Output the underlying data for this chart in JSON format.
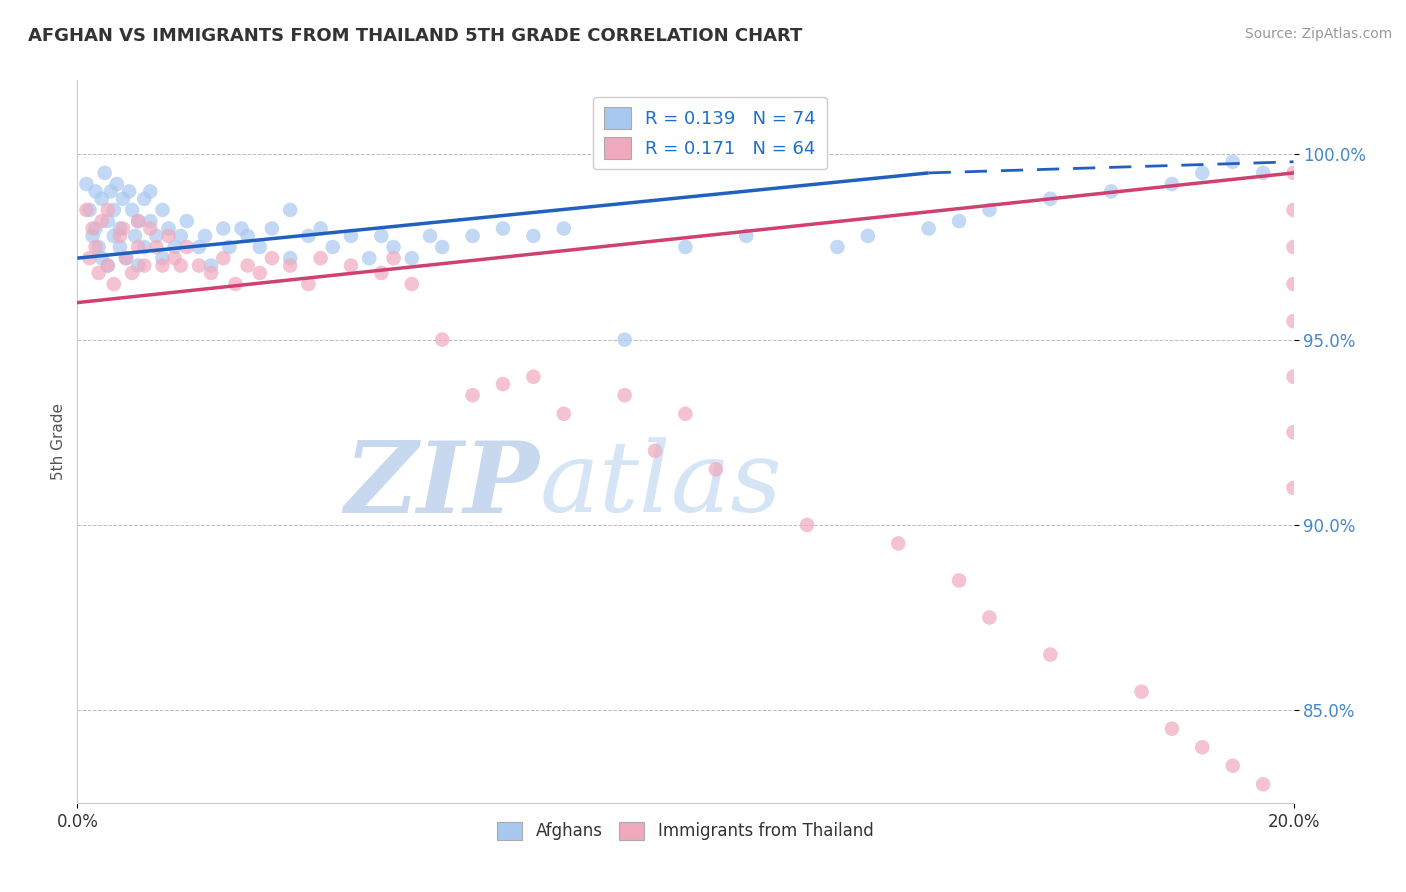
{
  "title": "AFGHAN VS IMMIGRANTS FROM THAILAND 5TH GRADE CORRELATION CHART",
  "source": "Source: ZipAtlas.com",
  "ylabel": "5th Grade",
  "xlim": [
    0.0,
    20.0
  ],
  "ylim": [
    82.5,
    102.0
  ],
  "yticks": [
    85.0,
    90.0,
    95.0,
    100.0
  ],
  "ytick_labels": [
    "85.0%",
    "90.0%",
    "95.0%",
    "100.0%"
  ],
  "r_blue": 0.139,
  "n_blue": 74,
  "r_pink": 0.171,
  "n_pink": 64,
  "blue_color": "#A8C8F0",
  "pink_color": "#F0A8BC",
  "trend_blue_color": "#2060C0",
  "trend_pink_color": "#D04070",
  "watermark_zip": "#C8D8EE",
  "watermark_atlas": "#D8E8F8",
  "blue_x": [
    0.15,
    0.2,
    0.25,
    0.3,
    0.3,
    0.35,
    0.4,
    0.4,
    0.45,
    0.5,
    0.5,
    0.55,
    0.6,
    0.6,
    0.65,
    0.7,
    0.7,
    0.75,
    0.8,
    0.85,
    0.9,
    0.95,
    1.0,
    1.0,
    1.1,
    1.1,
    1.2,
    1.2,
    1.3,
    1.4,
    1.4,
    1.5,
    1.6,
    1.7,
    1.8,
    2.0,
    2.1,
    2.2,
    2.4,
    2.5,
    2.7,
    2.8,
    3.0,
    3.2,
    3.5,
    3.5,
    3.8,
    4.0,
    4.2,
    4.5,
    4.8,
    5.0,
    5.2,
    5.5,
    5.8,
    6.0,
    6.5,
    7.0,
    7.5,
    8.0,
    9.0,
    10.0,
    11.0,
    12.5,
    13.0,
    14.0,
    14.5,
    15.0,
    16.0,
    17.0,
    18.0,
    18.5,
    19.0,
    19.5
  ],
  "blue_y": [
    99.2,
    98.5,
    97.8,
    98.0,
    99.0,
    97.5,
    98.8,
    97.2,
    99.5,
    98.2,
    97.0,
    99.0,
    98.5,
    97.8,
    99.2,
    98.0,
    97.5,
    98.8,
    97.2,
    99.0,
    98.5,
    97.8,
    98.2,
    97.0,
    98.8,
    97.5,
    99.0,
    98.2,
    97.8,
    98.5,
    97.2,
    98.0,
    97.5,
    97.8,
    98.2,
    97.5,
    97.8,
    97.0,
    98.0,
    97.5,
    98.0,
    97.8,
    97.5,
    98.0,
    97.2,
    98.5,
    97.8,
    98.0,
    97.5,
    97.8,
    97.2,
    97.8,
    97.5,
    97.2,
    97.8,
    97.5,
    97.8,
    98.0,
    97.8,
    98.0,
    95.0,
    97.5,
    97.8,
    97.5,
    97.8,
    98.0,
    98.2,
    98.5,
    98.8,
    99.0,
    99.2,
    99.5,
    99.8,
    99.5
  ],
  "pink_x": [
    0.15,
    0.2,
    0.25,
    0.3,
    0.35,
    0.4,
    0.5,
    0.5,
    0.6,
    0.7,
    0.75,
    0.8,
    0.9,
    1.0,
    1.0,
    1.1,
    1.2,
    1.3,
    1.4,
    1.5,
    1.6,
    1.7,
    1.8,
    2.0,
    2.2,
    2.4,
    2.6,
    2.8,
    3.0,
    3.2,
    3.5,
    3.8,
    4.0,
    4.5,
    5.0,
    5.2,
    5.5,
    6.0,
    6.5,
    7.0,
    7.5,
    8.0,
    9.0,
    9.5,
    10.0,
    10.5,
    12.0,
    13.5,
    14.5,
    15.0,
    16.0,
    17.5,
    18.0,
    18.5,
    19.0,
    19.5,
    20.0,
    20.0,
    20.0,
    20.0,
    20.0,
    20.0,
    20.0,
    20.0
  ],
  "pink_y": [
    98.5,
    97.2,
    98.0,
    97.5,
    96.8,
    98.2,
    97.0,
    98.5,
    96.5,
    97.8,
    98.0,
    97.2,
    96.8,
    98.2,
    97.5,
    97.0,
    98.0,
    97.5,
    97.0,
    97.8,
    97.2,
    97.0,
    97.5,
    97.0,
    96.8,
    97.2,
    96.5,
    97.0,
    96.8,
    97.2,
    97.0,
    96.5,
    97.2,
    97.0,
    96.8,
    97.2,
    96.5,
    95.0,
    93.5,
    93.8,
    94.0,
    93.0,
    93.5,
    92.0,
    93.0,
    91.5,
    90.0,
    89.5,
    88.5,
    87.5,
    86.5,
    85.5,
    84.5,
    84.0,
    83.5,
    83.0,
    99.5,
    98.5,
    97.5,
    96.5,
    95.5,
    94.0,
    92.5,
    91.0
  ],
  "trend_blue_x0": 0.0,
  "trend_blue_x1": 14.0,
  "trend_blue_y0": 97.2,
  "trend_blue_y1": 99.5,
  "trend_blue_dashed_x0": 14.0,
  "trend_blue_dashed_x1": 20.0,
  "trend_blue_dashed_y0": 99.5,
  "trend_blue_dashed_y1": 99.8,
  "trend_pink_x0": 0.0,
  "trend_pink_x1": 20.0,
  "trend_pink_y0": 96.0,
  "trend_pink_y1": 99.5
}
